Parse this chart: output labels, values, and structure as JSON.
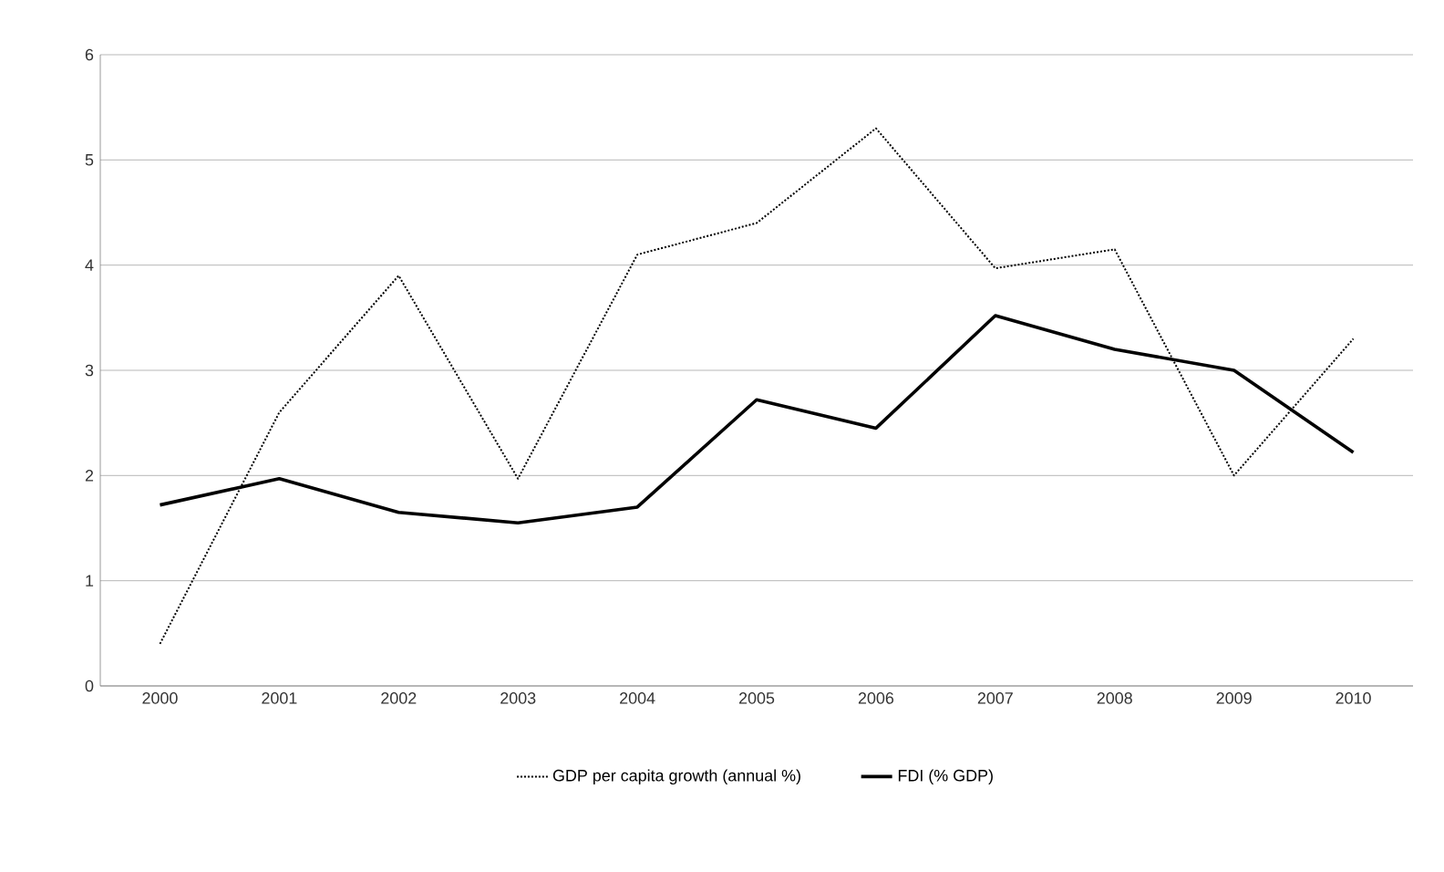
{
  "chart_data": {
    "type": "line",
    "categories": [
      "2000",
      "2001",
      "2002",
      "2003",
      "2004",
      "2005",
      "2006",
      "2007",
      "2008",
      "2009",
      "2010"
    ],
    "series": [
      {
        "name": "GDP per capita growth (annual %)",
        "color": "#000000",
        "line_style": "dotted",
        "values": [
          0.4,
          2.6,
          3.9,
          1.97,
          4.1,
          4.4,
          5.3,
          3.97,
          4.15,
          2.0,
          3.3
        ]
      },
      {
        "name": "FDI (% GDP)",
        "color": "#000000",
        "line_style": "solid",
        "values": [
          1.72,
          1.97,
          1.65,
          1.55,
          1.7,
          2.72,
          2.45,
          3.52,
          3.2,
          3.0,
          2.22
        ]
      }
    ],
    "ylim": [
      0,
      6
    ],
    "yticks": [
      0,
      1,
      2,
      3,
      4,
      5,
      6
    ],
    "grid": "y",
    "legend": "bottom"
  }
}
